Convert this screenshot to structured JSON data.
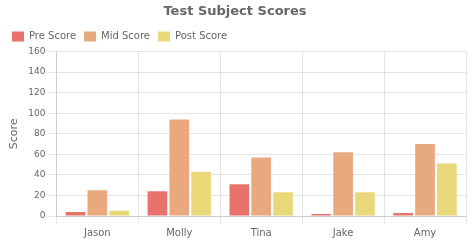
{
  "chart_data": {
    "type": "bar",
    "title": "Test Subject Scores",
    "categories": [
      "Jason",
      "Molly",
      "Tina",
      "Jake",
      "Amy"
    ],
    "series": [
      {
        "name": "Pre Score",
        "color": "#e8736c",
        "values": [
          4,
          24,
          31,
          2,
          3
        ]
      },
      {
        "name": "Mid Score",
        "color": "#e8a97e",
        "values": [
          25,
          94,
          57,
          62,
          70
        ]
      },
      {
        "name": "Post Score",
        "color": "#e8d87a",
        "values": [
          5,
          43,
          23,
          23,
          51
        ]
      }
    ],
    "ylabel": "Score",
    "ylim": [
      0,
      160
    ],
    "yticks": [
      0,
      20,
      40,
      60,
      80,
      100,
      120,
      140,
      160
    ],
    "grid": true,
    "legend": "upper left"
  }
}
